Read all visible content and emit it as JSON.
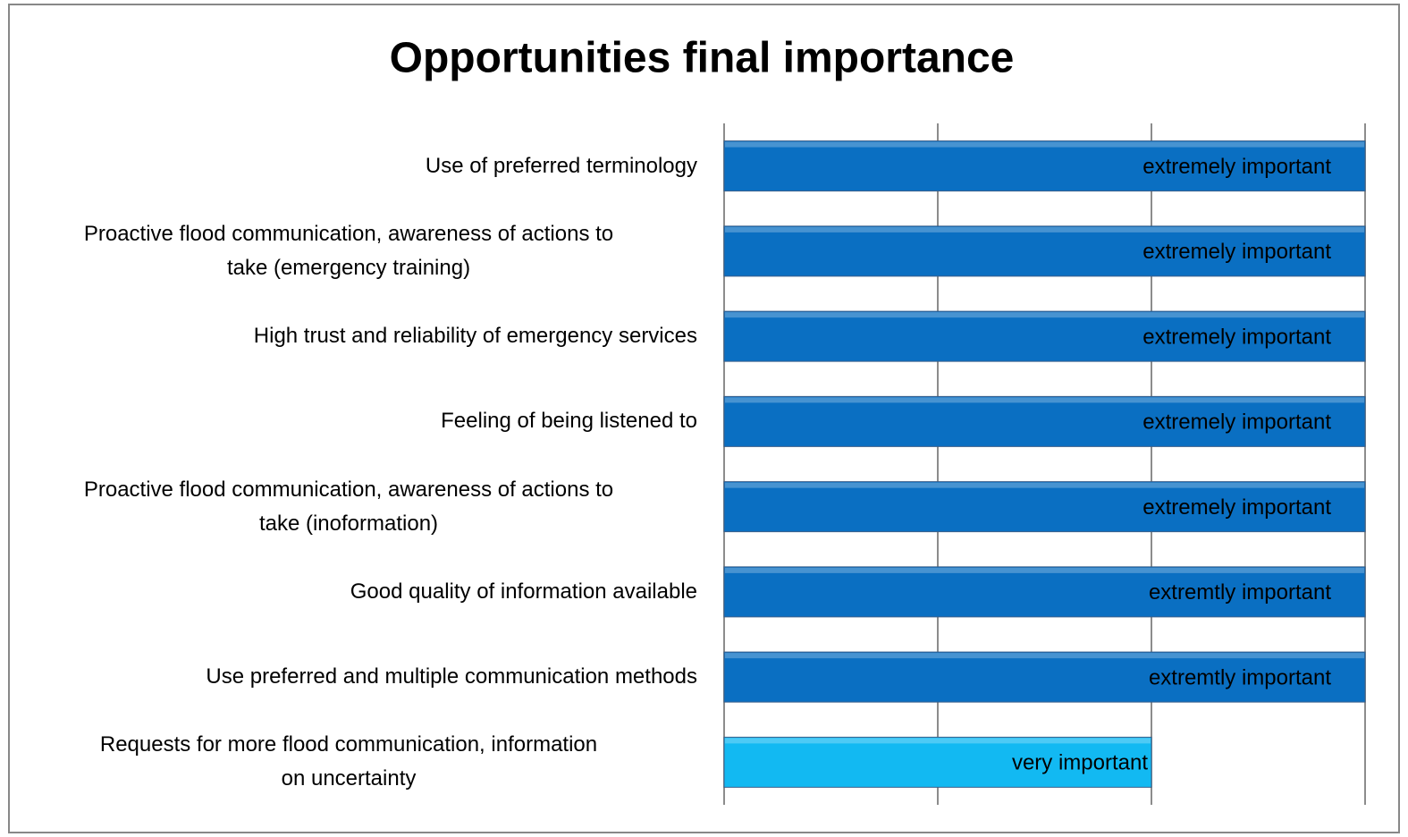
{
  "chart_data": {
    "type": "barh",
    "title": "Opportunities final importance",
    "categories": [
      "Use of preferred terminology",
      "Proactive flood communication, awareness of actions to\ntake (emergency training)",
      "High trust and reliability of emergency services",
      "Feeling of being listened to",
      "Proactive flood communication, awareness of actions to\ntake (inoformation)",
      "Good quality of information available",
      "Use preferred and multiple communication methods",
      "Requests for more flood communication, information\non uncertainty"
    ],
    "values": [
      3,
      3,
      3,
      3,
      3,
      3,
      3,
      2
    ],
    "value_labels": [
      "extremely important",
      "extremely important",
      "extremely important",
      "extremely important",
      "extremely important",
      "extremtly important",
      "extremtly important",
      "very important"
    ],
    "colors": [
      "#0a6fc2",
      "#0a6fc2",
      "#0a6fc2",
      "#0a6fc2",
      "#0a6fc2",
      "#0a6fc2",
      "#0a6fc2",
      "#12b9f2"
    ],
    "xlim": [
      0,
      3
    ],
    "xticks": [
      0,
      1,
      2,
      3
    ],
    "grid": true
  }
}
